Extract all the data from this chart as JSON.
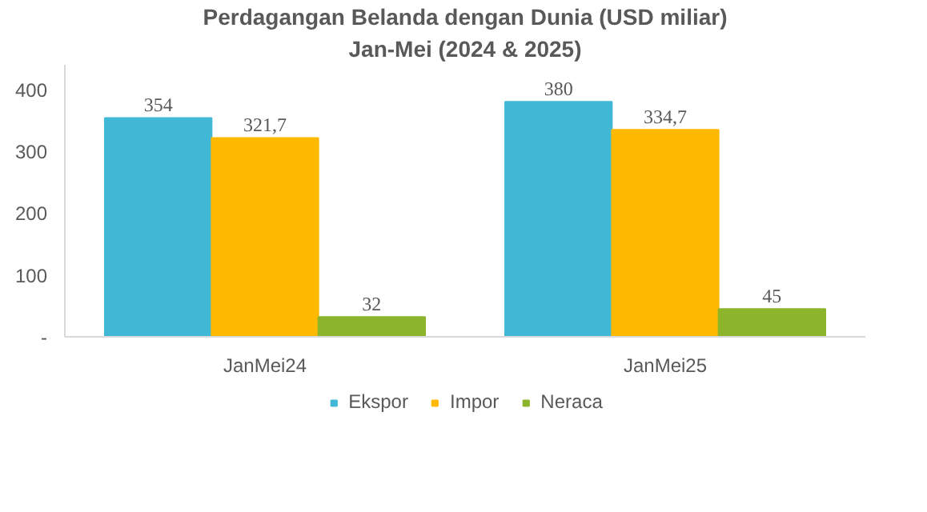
{
  "chart_data": {
    "type": "bar",
    "title": "Perdagangan Belanda dengan Dunia (USD miliar)",
    "subtitle": "Jan-Mei (2024 & 2025)",
    "categories": [
      "JanMei24",
      "JanMei25"
    ],
    "series": [
      {
        "name": "Ekspor",
        "color": "#41b8d5",
        "values": [
          354,
          380
        ],
        "value_labels": [
          "354",
          "380"
        ]
      },
      {
        "name": "Impor",
        "color": "#ffb900",
        "values": [
          321.7,
          334.7
        ],
        "value_labels": [
          "321,7",
          "334,7"
        ]
      },
      {
        "name": "Neraca",
        "color": "#8cb52c",
        "values": [
          32,
          45
        ],
        "value_labels": [
          "32",
          "45"
        ]
      }
    ],
    "ylim": [
      0,
      440
    ],
    "yticks": [
      {
        "value": 0,
        "label": "-"
      },
      100,
      200,
      300,
      400
    ],
    "grid": false,
    "legend": "bottom"
  }
}
